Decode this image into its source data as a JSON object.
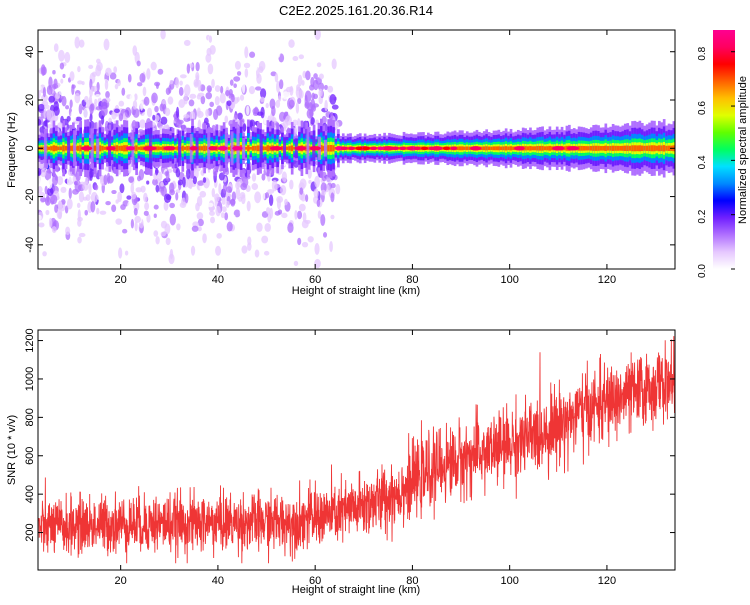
{
  "title": "C2E2.2025.161.20.36.R14",
  "chart_data": [
    {
      "type": "heatmap",
      "title": "C2E2.2025.161.20.36.R14",
      "xlabel": "Height of straight line (km)",
      "ylabel": "Frequency (Hz)",
      "xlim": [
        3,
        134
      ],
      "ylim": [
        -50,
        49
      ],
      "x_ticks": [
        20,
        40,
        60,
        80,
        100,
        120
      ],
      "y_ticks": [
        -40,
        -20,
        0,
        20,
        40
      ],
      "colorbar": {
        "label": "Normalized spectral amplitude",
        "range": [
          0.0,
          0.88
        ],
        "ticks": [
          0.0,
          0.2,
          0.4,
          0.6,
          0.8
        ],
        "palette": [
          "#ffffff",
          "#e6c8ff",
          "#b070ff",
          "#7020ff",
          "#0000ff",
          "#0088ff",
          "#00e0ff",
          "#00ff60",
          "#60ff00",
          "#e0ff00",
          "#ffc000",
          "#ff6000",
          "#ff0000",
          "#ff0060",
          "#ff0090"
        ]
      },
      "band": {
        "center_hz": 0,
        "core_halfwidth_hz": [
          {
            "x": 3,
            "hz": 1.5
          },
          {
            "x": 70,
            "hz": 1.5
          },
          {
            "x": 100,
            "hz": 2
          },
          {
            "x": 134,
            "hz": 3
          }
        ],
        "peak_amplitude": 0.88,
        "hot_spots_x": [
          13,
          18,
          22,
          26,
          30,
          35,
          39,
          41,
          44,
          52,
          57,
          60,
          65,
          70,
          75,
          80,
          85,
          93,
          102,
          110,
          113
        ]
      },
      "scatter_region": {
        "x_from": 3,
        "x_to": 65,
        "freq_range": [
          -50,
          49
        ],
        "amplitude_range": [
          0.02,
          0.25
        ]
      }
    },
    {
      "type": "line",
      "xlabel": "Height of straight line (km)",
      "ylabel": "SNR (10 * v/v)",
      "xlim": [
        3,
        134
      ],
      "ylim": [
        5,
        1255
      ],
      "x_ticks": [
        20,
        40,
        60,
        80,
        100,
        120
      ],
      "y_ticks": [
        200,
        400,
        600,
        800,
        1000,
        1200
      ],
      "series": [
        {
          "color": "#ef3535",
          "trend": [
            {
              "x": 3,
              "mean": 225,
              "spread": 190
            },
            {
              "x": 20,
              "mean": 245,
              "spread": 200
            },
            {
              "x": 40,
              "mean": 250,
              "spread": 200
            },
            {
              "x": 55,
              "mean": 255,
              "spread": 200
            },
            {
              "x": 65,
              "mean": 300,
              "spread": 210
            },
            {
              "x": 75,
              "mean": 380,
              "spread": 230
            },
            {
              "x": 85,
              "mean": 540,
              "spread": 250
            },
            {
              "x": 95,
              "mean": 620,
              "spread": 250
            },
            {
              "x": 105,
              "mean": 700,
              "spread": 260
            },
            {
              "x": 115,
              "mean": 830,
              "spread": 260
            },
            {
              "x": 125,
              "mean": 920,
              "spread": 250
            },
            {
              "x": 134,
              "mean": 990,
              "spread": 240
            }
          ],
          "range": [
            40,
            1240
          ]
        }
      ]
    }
  ]
}
